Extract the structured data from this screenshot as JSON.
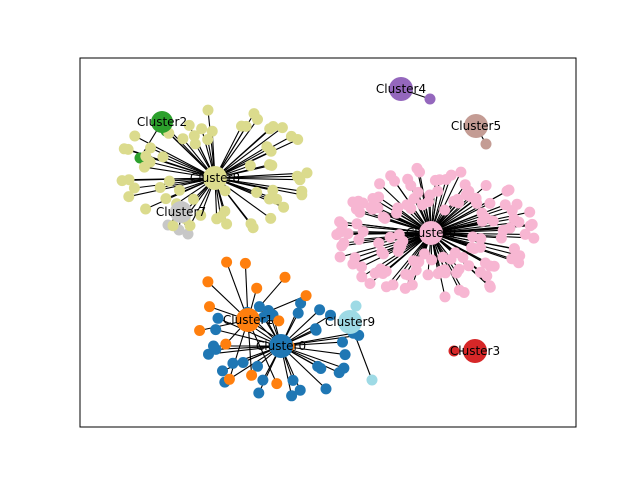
{
  "graph": {
    "type": "network",
    "clusters": [
      {
        "name": "Cluster0",
        "color": "#1f77b4",
        "leaf_count": 36
      },
      {
        "name": "Cluster1",
        "color": "#ff7f0e",
        "leaf_count": 14
      },
      {
        "name": "Cluster2",
        "color": "#2ca02c",
        "leaf_count": 2
      },
      {
        "name": "Cluster3",
        "color": "#d62728",
        "leaf_count": 1
      },
      {
        "name": "Cluster4",
        "color": "#9467bd",
        "leaf_count": 1
      },
      {
        "name": "Cluster5",
        "color": "#c49c94",
        "leaf_count": 1
      },
      {
        "name": "Cluster6",
        "color": "#f7b6d2",
        "leaf_count": 140
      },
      {
        "name": "Cluster7",
        "color": "#c7c7c7",
        "leaf_count": 3
      },
      {
        "name": "Cluster8",
        "color": "#dbdb8d",
        "leaf_count": 66
      },
      {
        "name": "Cluster9",
        "color": "#9edae5",
        "leaf_count": 2
      }
    ]
  }
}
